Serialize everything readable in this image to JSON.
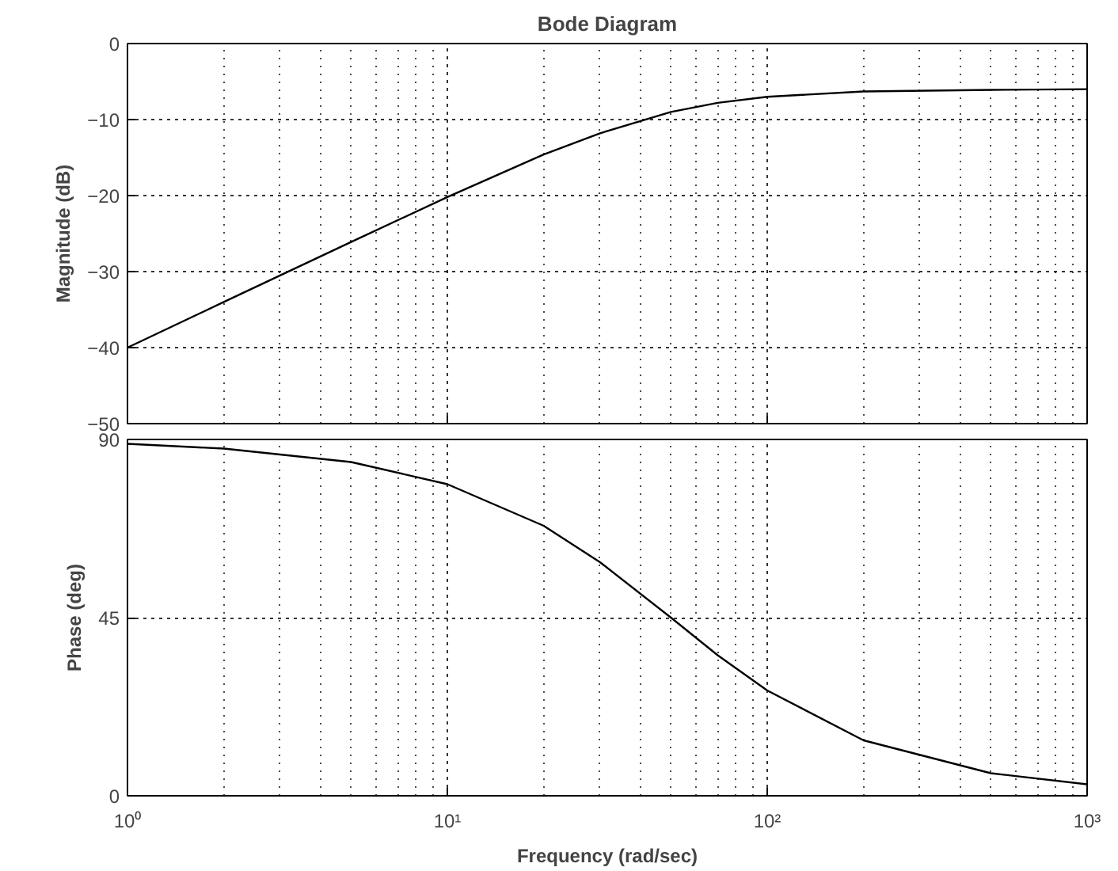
{
  "chart_data": [
    {
      "type": "line",
      "title": "Bode Diagram",
      "ylabel": "Magnitude (dB)",
      "x": [
        1,
        2,
        5,
        10,
        20,
        30,
        50,
        70,
        100,
        200,
        500,
        1000
      ],
      "values": [
        -40.0,
        -34.0,
        -26.1,
        -20.2,
        -14.6,
        -11.8,
        -9.0,
        -7.8,
        -7.0,
        -6.3,
        -6.1,
        -6.0
      ],
      "color": "#000000",
      "log": "x",
      "xlim": [
        1,
        1000
      ],
      "xticks": [
        {
          "value": 1,
          "label": null
        },
        {
          "value": 10,
          "label": null
        },
        {
          "value": 100,
          "label": null
        },
        {
          "value": 1000,
          "label": null
        }
      ],
      "ylim": [
        -50,
        0
      ],
      "yticks": [
        0,
        -10,
        -20,
        -30,
        -40,
        -50
      ],
      "grid": true,
      "tick_labels": "y",
      "marker": "none",
      "line_style": "solid"
    },
    {
      "type": "line",
      "ylabel": "Phase (deg)",
      "xlabel": "Frequency (rad/sec)",
      "x": [
        1,
        2,
        5,
        10,
        20,
        30,
        50,
        70,
        100,
        200,
        500,
        1000
      ],
      "values": [
        88.9,
        87.7,
        84.3,
        78.7,
        68.2,
        59.0,
        45.0,
        35.5,
        26.6,
        14.0,
        5.7,
        2.9
      ],
      "color": "#000000",
      "log": "x",
      "xlim": [
        1,
        1000
      ],
      "xticks": [
        {
          "value": 1,
          "label": "10⁰"
        },
        {
          "value": 10,
          "label": "10¹"
        },
        {
          "value": 100,
          "label": "10²"
        },
        {
          "value": 1000,
          "label": "10³"
        }
      ],
      "ylim": [
        0,
        90
      ],
      "yticks": [
        0,
        45,
        90
      ],
      "grid": true,
      "marker": "none",
      "line_style": "solid"
    }
  ]
}
